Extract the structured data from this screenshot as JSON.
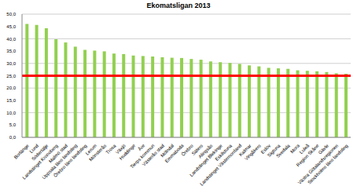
{
  "chart_data": {
    "type": "bar",
    "title": "Ekomatsligan 2013",
    "categories": [
      "Borlänge",
      "Lund",
      "Södertälje",
      "Landstinget Kronoberg",
      "Malmö stad",
      "Uppsala läns landsting",
      "Örebro läns landsting",
      "Lerum",
      "Mönsterås",
      "Trosa",
      "Växjö",
      "Huddinge",
      "Åre",
      "Tierps kommun",
      "Västerås stad",
      "Mölndal",
      "Emmaboda",
      "Örebro",
      "Säters",
      "Alingsås",
      "Landstinget Blekinge",
      "Eskilstuna",
      "Landstinget Västernorrland",
      "Kalmar",
      "Vingåkers",
      "Eslöv",
      "Sigtuna",
      "Svedala",
      "Mora",
      "Luleå",
      "Region Skåne",
      "Gävle",
      "Västra Götalandsregionen",
      "Stockholms läns landsting"
    ],
    "values": [
      46.0,
      45.6,
      44.3,
      39.8,
      38.5,
      36.8,
      35.5,
      35.2,
      34.9,
      34.0,
      33.8,
      33.2,
      33.0,
      32.8,
      32.5,
      32.3,
      32.2,
      31.8,
      31.5,
      30.8,
      30.5,
      30.2,
      29.8,
      29.2,
      28.8,
      28.2,
      28.0,
      27.8,
      27.2,
      27.0,
      26.8,
      26.5,
      26.0,
      25.8
    ],
    "color": "#92d050",
    "reference_line": 25,
    "reference_line_color": "#ff0000",
    "ylim": [
      0,
      50
    ],
    "yticks": [
      {
        "value": 0,
        "label": "0,0"
      },
      {
        "value": 5,
        "label": "5,0"
      },
      {
        "value": 10,
        "label": "10,0"
      },
      {
        "value": 15,
        "label": "15,0"
      },
      {
        "value": 20,
        "label": "20,0"
      },
      {
        "value": 25,
        "label": "25,0"
      },
      {
        "value": 30,
        "label": "30,0"
      },
      {
        "value": 35,
        "label": "35,0"
      },
      {
        "value": 40,
        "label": "40,0"
      },
      {
        "value": 45,
        "label": "45,0"
      },
      {
        "value": 50,
        "label": "50,0"
      }
    ],
    "grid": true
  }
}
